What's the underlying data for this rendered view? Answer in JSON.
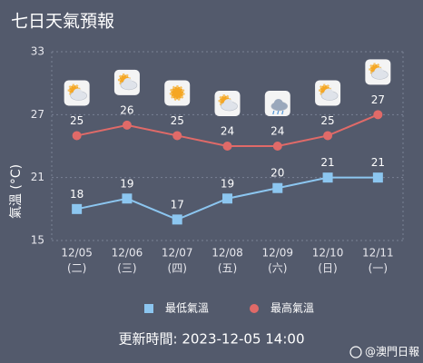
{
  "chart_data": {
    "type": "line",
    "title": "七日天氣預報",
    "y_label": "氣溫 (°C)",
    "categories": [
      "12/05",
      "12/06",
      "12/07",
      "12/08",
      "12/09",
      "12/10",
      "12/11"
    ],
    "weekdays": [
      "(二)",
      "(三)",
      "(四)",
      "(五)",
      "(六)",
      "(日)",
      "(一)"
    ],
    "series": [
      {
        "name": "最低氣溫",
        "color": "#8cc6f0",
        "marker": "square",
        "values": [
          18,
          19,
          17,
          19,
          20,
          21,
          21
        ]
      },
      {
        "name": "最高氣溫",
        "color": "#e06a68",
        "marker": "circle",
        "values": [
          25,
          26,
          25,
          24,
          24,
          25,
          27
        ]
      }
    ],
    "ylim": [
      15,
      33
    ],
    "yticks": [
      15,
      21,
      27,
      33
    ],
    "grid": true,
    "legend": "bottom",
    "footer": "更新時間: 2023-12-05 14:00",
    "watermark": "@澳門日報"
  }
}
